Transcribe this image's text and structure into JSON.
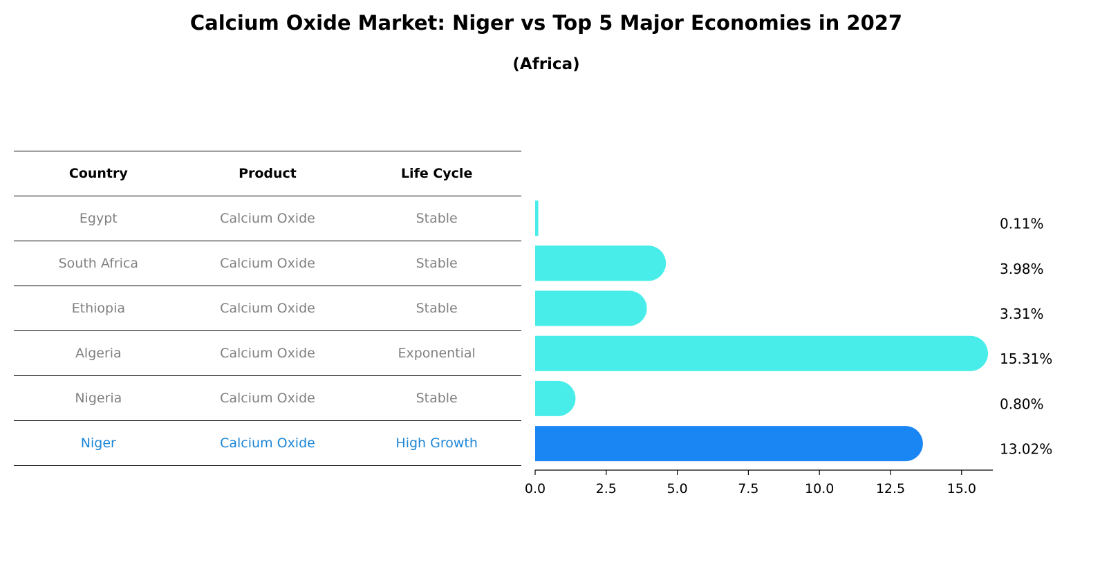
{
  "title": "Calcium Oxide Market: Niger vs Top 5 Major Economies in 2027",
  "subtitle": "(Africa)",
  "table": {
    "headers": [
      "Country",
      "Product",
      "Life Cycle"
    ],
    "rows": [
      {
        "country": "Egypt",
        "product": "Calcium Oxide",
        "life_cycle": "Stable"
      },
      {
        "country": "South Africa",
        "product": "Calcium Oxide",
        "life_cycle": "Stable"
      },
      {
        "country": "Ethiopia",
        "product": "Calcium Oxide",
        "life_cycle": "Stable"
      },
      {
        "country": "Algeria",
        "product": "Calcium Oxide",
        "life_cycle": "Exponential"
      },
      {
        "country": "Nigeria",
        "product": "Calcium Oxide",
        "life_cycle": "Stable"
      },
      {
        "country": "Niger",
        "product": "Calcium Oxide",
        "life_cycle": "High Growth"
      }
    ]
  },
  "colors": {
    "bar": "#48ede9",
    "highlight": "#1a86f4",
    "highlight_text": "#1a86d8",
    "muted_text": "#808080"
  },
  "chart_data": {
    "type": "bar",
    "orientation": "horizontal",
    "categories": [
      "Egypt",
      "South Africa",
      "Ethiopia",
      "Algeria",
      "Nigeria",
      "Niger"
    ],
    "values": [
      0.11,
      3.98,
      3.31,
      15.31,
      0.8,
      13.02
    ],
    "value_labels": [
      "0.11%",
      "3.98%",
      "3.31%",
      "15.31%",
      "0.80%",
      "13.02%"
    ],
    "highlight": "Niger",
    "xticks": [
      "0.0",
      "2.5",
      "5.0",
      "7.5",
      "10.0",
      "12.5",
      "15.0"
    ],
    "xlim": [
      0,
      16.1
    ],
    "grid": false
  }
}
